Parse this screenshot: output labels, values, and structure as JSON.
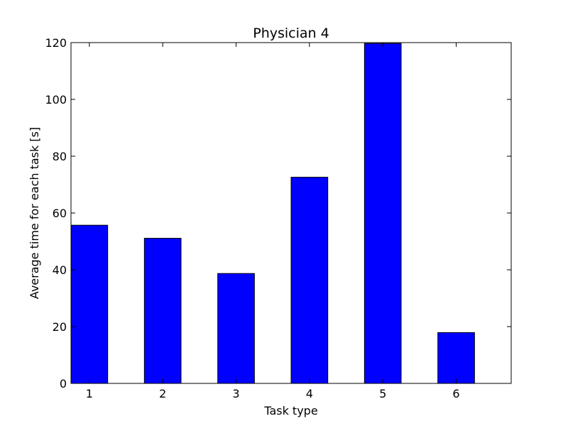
{
  "chart_data": {
    "type": "bar",
    "title": "Physician 4",
    "xlabel": "Task type",
    "ylabel": "Average time for each task [s]",
    "categories": [
      "1",
      "2",
      "3",
      "4",
      "5",
      "6"
    ],
    "values": [
      55.7,
      51.1,
      38.7,
      72.6,
      119.7,
      17.9
    ],
    "ylim": [
      0,
      120
    ],
    "yticks": [
      0,
      20,
      40,
      60,
      80,
      100,
      120
    ],
    "xlim": [
      0.75,
      6.75
    ],
    "bar_width": 0.5,
    "bar_color": "#0000ff",
    "bar_edge_color": "#000000",
    "grid": false,
    "legend": "none"
  }
}
